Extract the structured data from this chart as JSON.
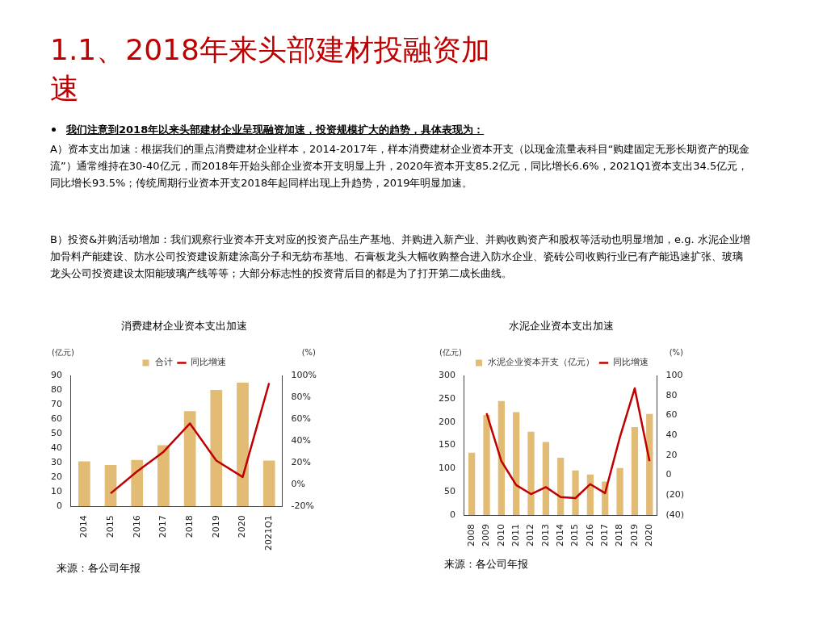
{
  "chart_data": [
    {
      "type": "other",
      "title": "1.1、2018年来头部建材投融资加速",
      "annotations": [
        "我们注意到2018年以来头部建材企业呈现融资加速，投资规模扩大的趋势，具体表现为：",
        "A）资本支出加速：根据我们的重点消费建材企业样本，2014-2017年，样本消费建材企业资本开支（以现金流量表科目“购建固定无形长期资产的现金流”）通常维持在30-40亿元，而2018年开始头部企业资本开支明显上升，2020年资本开支85.2亿元，同比增长6.6%，2021Q1资本支出34.5亿元，同比增长93.5%；传统周期行业资本开支2018年起同样出现上升趋势，2019年明显加速。",
        "B）投资&并购活动增加：我们观察行业资本开支对应的投资产品生产基地、并购进入新产业、并购收购资产和股权等活动也明显增加，e.g. 水泥企业增加骨料产能建设、防水公司投资建设新建涂高分子和无纺布基地、石膏板龙头大幅收购整合进入防水企业、瓷砖公司收购行业已有产能迅速扩张、玻璃龙头公司投资建设太阳能玻璃产线等等；大部分标志性的投资背后目的都是为了打开第二成长曲线。"
      ]
    },
    {
      "type": "bar",
      "title": "消费建材企业资本支出加速",
      "ylabel": "(亿元)",
      "y2label": "(%)",
      "legend": "top",
      "marker": "none",
      "categories": [
        "2014",
        "2015",
        "2016",
        "2017",
        "2018",
        "2019",
        "2020",
        "2021Q1"
      ],
      "ylim": [
        0,
        90
      ],
      "yticks": [
        0,
        10,
        20,
        30,
        40,
        50,
        60,
        70,
        80,
        90
      ],
      "y2lim": [
        -20,
        100
      ],
      "y2ticks": [
        {
          "value": -20,
          "label": "-20%"
        },
        {
          "value": 0,
          "label": "0%"
        },
        {
          "value": 20,
          "label": "20%"
        },
        {
          "value": 40,
          "label": "40%"
        },
        {
          "value": 60,
          "label": "60%"
        },
        {
          "value": 80,
          "label": "80%"
        },
        {
          "value": 100,
          "label": "100%"
        }
      ],
      "series": [
        {
          "name": "合计",
          "type": "bar",
          "color": "#e2bb74",
          "values": [
            31,
            28.5,
            32,
            42,
            65.5,
            80,
            85,
            31.5
          ]
        },
        {
          "name": "同比增速",
          "type": "line",
          "axis": "y2",
          "color": "#c00000",
          "values": [
            null,
            -8,
            12,
            30,
            56,
            22,
            7,
            93
          ]
        }
      ],
      "annotations": [
        "来源：各公司年报"
      ]
    },
    {
      "type": "bar",
      "title": "水泥企业资本支出加速",
      "ylabel": "(亿元)",
      "y2label": "(%)",
      "legend": "top",
      "marker": "none",
      "categories": [
        "2008",
        "2009",
        "2010",
        "2011",
        "2012",
        "2013",
        "2014",
        "2015",
        "2016",
        "2017",
        "2018",
        "2019",
        "2020"
      ],
      "ylim": [
        0,
        300
      ],
      "yticks": [
        0,
        50,
        100,
        150,
        200,
        250,
        300
      ],
      "y2lim": [
        -40,
        100
      ],
      "y2ticks": [
        {
          "value": -40,
          "label": "(40)"
        },
        {
          "value": -20,
          "label": "(20)"
        },
        0,
        20,
        40,
        60,
        80,
        100
      ],
      "series": [
        {
          "name": "水泥企业资本开支（亿元）",
          "type": "bar",
          "color": "#e2bb74",
          "values": [
            134,
            215,
            245,
            221,
            179,
            157,
            123,
            96,
            87,
            72,
            101,
            189,
            217
          ]
        },
        {
          "name": "同比增速",
          "type": "line",
          "axis": "y2",
          "color": "#c00000",
          "values": [
            null,
            62,
            14,
            -10,
            -19,
            -12,
            -22,
            -23,
            -9,
            -18,
            38,
            87,
            14
          ]
        }
      ],
      "annotations": [
        "来源：各公司年报"
      ]
    }
  ]
}
